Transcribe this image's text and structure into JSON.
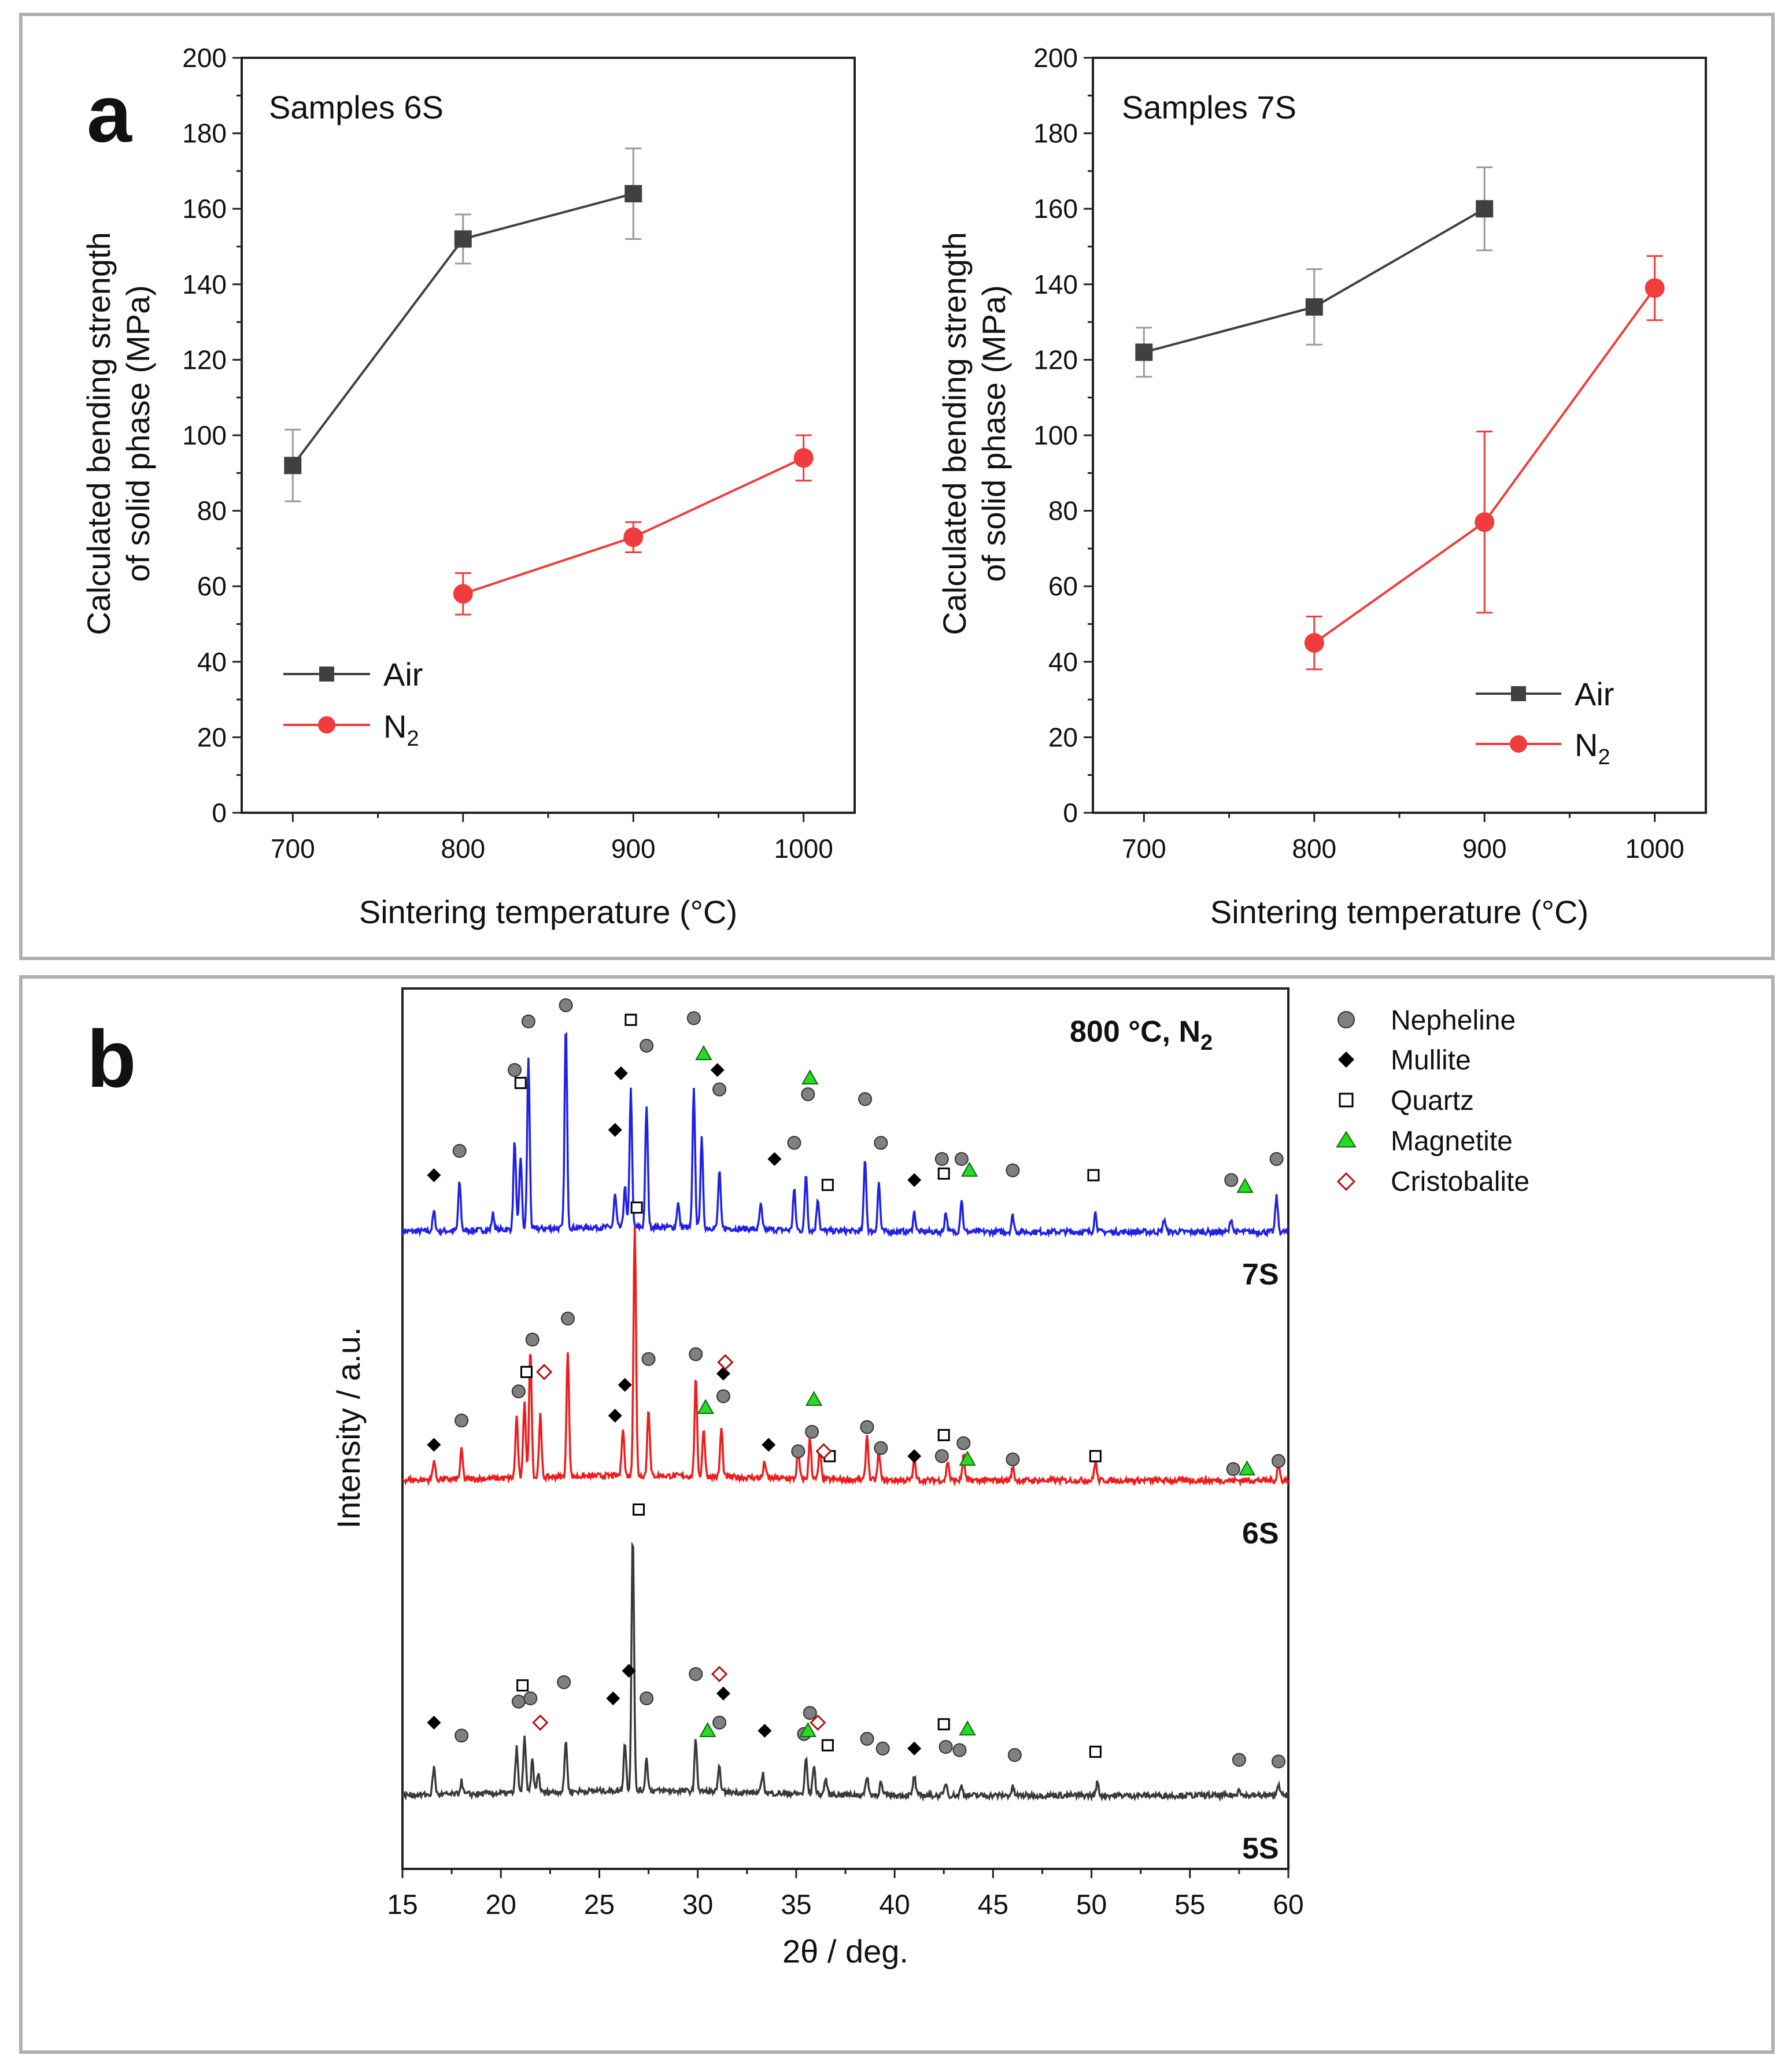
{
  "chart_data": [
    {
      "type": "line",
      "panel_label": "a",
      "title": "Samples 6S",
      "xlabel": "Sintering temperature (°C)",
      "ylabel": [
        "Calculated bending strength",
        "of solid phase (MPa)"
      ],
      "xlim": [
        670,
        1030
      ],
      "ylim": [
        0,
        200
      ],
      "xticks": [
        700,
        800,
        900,
        1000
      ],
      "yticks": [
        0,
        20,
        40,
        60,
        80,
        100,
        120,
        140,
        160,
        180,
        200
      ],
      "legend_position": "bottom-left",
      "series": [
        {
          "name": "Air",
          "color": "#404040",
          "marker": "square",
          "x": [
            700,
            800,
            900
          ],
          "y": [
            92,
            152,
            164
          ],
          "err": [
            9.5,
            6.5,
            12
          ]
        },
        {
          "name": "N",
          "sub": "2",
          "color": "#f03c3c",
          "marker": "circle",
          "x": [
            800,
            900,
            1000
          ],
          "y": [
            58,
            73,
            94
          ],
          "err": [
            5.5,
            4,
            6
          ]
        }
      ]
    },
    {
      "type": "line",
      "title": "Samples 7S",
      "xlabel": "Sintering temperature (°C)",
      "ylabel": [
        "Calculated bending strength",
        "of solid phase (MPa)"
      ],
      "xlim": [
        670,
        1030
      ],
      "ylim": [
        0,
        200
      ],
      "xticks": [
        700,
        800,
        900,
        1000
      ],
      "yticks": [
        0,
        20,
        40,
        60,
        80,
        100,
        120,
        140,
        160,
        180,
        200
      ],
      "legend_position": "bottom-right",
      "series": [
        {
          "name": "Air",
          "color": "#404040",
          "marker": "square",
          "x": [
            700,
            800,
            900,
            1000
          ],
          "y": [
            122,
            134,
            160,
            null
          ],
          "err": [
            6.5,
            10,
            11,
            0
          ]
        },
        {
          "name": "N",
          "sub": "2",
          "color": "#f03c3c",
          "marker": "circle",
          "x": [
            800,
            900,
            1000
          ],
          "y": [
            45,
            77,
            139
          ],
          "err": [
            7,
            24,
            8.5
          ]
        }
      ]
    },
    {
      "type": "line",
      "panel_label": "b",
      "title": "800 °C, N",
      "title_sub": "2",
      "xlabel": "2θ / deg.",
      "ylabel": "Intensity / a.u.",
      "xlim": [
        15,
        60
      ],
      "xticks": [
        15,
        20,
        25,
        30,
        35,
        40,
        45,
        50,
        55,
        60
      ],
      "traces": [
        {
          "name": "7S",
          "color": "#2020e8",
          "offset": 2.0,
          "baseline": 0.05,
          "peaks": [
            [
              16.6,
              0.12
            ],
            [
              17.9,
              0.3
            ],
            [
              19.6,
              0.1
            ],
            [
              20.7,
              0.55
            ],
            [
              21.0,
              0.45
            ],
            [
              21.4,
              1.05
            ],
            [
              23.3,
              1.25
            ],
            [
              25.8,
              0.2
            ],
            [
              26.3,
              0.25
            ],
            [
              26.6,
              0.85
            ],
            [
              27.4,
              0.75
            ],
            [
              29.0,
              0.15
            ],
            [
              29.8,
              0.85
            ],
            [
              30.2,
              0.55
            ],
            [
              31.1,
              0.35
            ],
            [
              33.2,
              0.15
            ],
            [
              34.9,
              0.25
            ],
            [
              35.5,
              0.35
            ],
            [
              36.1,
              0.2
            ],
            [
              38.5,
              0.45
            ],
            [
              39.2,
              0.3
            ],
            [
              41.0,
              0.12
            ],
            [
              42.6,
              0.12
            ],
            [
              43.4,
              0.2
            ],
            [
              46.0,
              0.1
            ],
            [
              50.2,
              0.12
            ],
            [
              53.7,
              0.08
            ],
            [
              57.1,
              0.08
            ],
            [
              59.4,
              0.22
            ]
          ]
        },
        {
          "name": "6S",
          "color": "#ee1c1c",
          "offset": 1.0,
          "baseline": 0.05,
          "peaks": [
            [
              16.6,
              0.12
            ],
            [
              18.0,
              0.18
            ],
            [
              20.8,
              0.38
            ],
            [
              21.2,
              0.48
            ],
            [
              21.5,
              0.8
            ],
            [
              22.0,
              0.38
            ],
            [
              23.4,
              0.78
            ],
            [
              26.2,
              0.3
            ],
            [
              26.8,
              1.55
            ],
            [
              27.5,
              0.42
            ],
            [
              29.9,
              0.6
            ],
            [
              30.3,
              0.3
            ],
            [
              31.2,
              0.3
            ],
            [
              33.4,
              0.1
            ],
            [
              35.1,
              0.18
            ],
            [
              35.7,
              0.25
            ],
            [
              36.2,
              0.18
            ],
            [
              38.6,
              0.28
            ],
            [
              39.2,
              0.18
            ],
            [
              41.0,
              0.12
            ],
            [
              42.7,
              0.12
            ],
            [
              43.5,
              0.15
            ],
            [
              46.0,
              0.08
            ],
            [
              50.2,
              0.12
            ],
            [
              59.5,
              0.1
            ]
          ]
        },
        {
          "name": "5S",
          "color": "#3a3a3a",
          "offset": 0.0,
          "baseline": 0.05,
          "peaks": [
            [
              16.6,
              0.17
            ],
            [
              18.0,
              0.08
            ],
            [
              20.8,
              0.28
            ],
            [
              21.2,
              0.35
            ],
            [
              21.6,
              0.2
            ],
            [
              21.9,
              0.12
            ],
            [
              23.3,
              0.32
            ],
            [
              26.3,
              0.3
            ],
            [
              26.7,
              1.6
            ],
            [
              27.4,
              0.2
            ],
            [
              29.9,
              0.32
            ],
            [
              31.1,
              0.15
            ],
            [
              33.3,
              0.12
            ],
            [
              35.5,
              0.22
            ],
            [
              35.9,
              0.18
            ],
            [
              36.5,
              0.1
            ],
            [
              38.6,
              0.12
            ],
            [
              39.3,
              0.08
            ],
            [
              41.0,
              0.12
            ],
            [
              42.6,
              0.08
            ],
            [
              43.4,
              0.06
            ],
            [
              46.0,
              0.05
            ],
            [
              50.3,
              0.08
            ],
            [
              57.5,
              0.05
            ],
            [
              59.5,
              0.08
            ]
          ]
        }
      ],
      "legend": [
        {
          "name": "Nepheline",
          "marker": "circle",
          "color": "#808080"
        },
        {
          "name": "Mullite",
          "marker": "diamond",
          "color": "#000000"
        },
        {
          "name": "Quartz",
          "marker": "open-square",
          "color": "#000000"
        },
        {
          "name": "Magnetite",
          "marker": "triangle",
          "color": "#22dd22"
        },
        {
          "name": "Cristobalite",
          "marker": "open-diamond",
          "color": "#b01010"
        }
      ],
      "phase_markers": {
        "7S": {
          "Nepheline": [
            [
              17.9,
              0.55
            ],
            [
              20.7,
              1.05
            ],
            [
              21.4,
              1.35
            ],
            [
              23.3,
              1.45
            ],
            [
              27.4,
              1.2
            ],
            [
              29.8,
              1.37
            ],
            [
              31.1,
              0.93
            ],
            [
              34.9,
              0.6
            ],
            [
              35.6,
              0.9
            ],
            [
              38.5,
              0.87
            ],
            [
              39.3,
              0.6
            ],
            [
              42.4,
              0.5
            ],
            [
              43.4,
              0.5
            ],
            [
              46.0,
              0.43
            ],
            [
              57.1,
              0.37
            ],
            [
              59.4,
              0.5
            ]
          ],
          "Mullite": [
            [
              16.6,
              0.4
            ],
            [
              25.8,
              0.68
            ],
            [
              26.1,
              1.03
            ],
            [
              31.0,
              1.05
            ],
            [
              33.9,
              0.5
            ],
            [
              41.0,
              0.37
            ]
          ],
          "Quartz": [
            [
              21.0,
              0.97
            ],
            [
              26.6,
              1.36
            ],
            [
              26.9,
              0.2
            ],
            [
              36.6,
              0.34
            ],
            [
              42.5,
              0.41
            ],
            [
              50.1,
              0.4
            ]
          ],
          "Magnetite": [
            [
              30.3,
              1.15
            ],
            [
              35.7,
              1.0
            ],
            [
              43.8,
              0.43
            ],
            [
              57.8,
              0.33
            ]
          ],
          "Cristobalite": []
        },
        "6S": {
          "Nepheline": [
            [
              18.0,
              0.42
            ],
            [
              20.9,
              0.6
            ],
            [
              21.6,
              0.92
            ],
            [
              23.4,
              1.05
            ],
            [
              27.5,
              0.8
            ],
            [
              29.9,
              0.83
            ],
            [
              31.3,
              0.57
            ],
            [
              35.8,
              0.35
            ],
            [
              35.1,
              0.23
            ],
            [
              38.6,
              0.38
            ],
            [
              39.3,
              0.25
            ],
            [
              42.4,
              0.2
            ],
            [
              43.5,
              0.28
            ],
            [
              46.0,
              0.18
            ],
            [
              57.2,
              0.12
            ],
            [
              59.5,
              0.17
            ]
          ],
          "Mullite": [
            [
              16.6,
              0.27
            ],
            [
              25.8,
              0.45
            ],
            [
              26.3,
              0.64
            ],
            [
              31.3,
              0.71
            ],
            [
              33.6,
              0.27
            ],
            [
              41.0,
              0.2
            ]
          ],
          "Quartz": [
            [
              21.3,
              0.72
            ],
            [
              27.0,
              -0.13
            ],
            [
              36.7,
              0.2
            ],
            [
              42.5,
              0.33
            ],
            [
              50.2,
              0.2
            ]
          ],
          "Magnetite": [
            [
              30.4,
              0.5
            ],
            [
              35.9,
              0.55
            ],
            [
              43.7,
              0.18
            ],
            [
              57.9,
              0.12
            ]
          ],
          "Cristobalite": [
            [
              22.2,
              0.72
            ],
            [
              31.4,
              0.78
            ],
            [
              36.4,
              0.23
            ]
          ]
        },
        "5S": {
          "Nepheline": [
            [
              18.0,
              0.42
            ],
            [
              20.9,
              0.63
            ],
            [
              21.5,
              0.65
            ],
            [
              23.2,
              0.75
            ],
            [
              27.4,
              0.65
            ],
            [
              29.9,
              0.8
            ],
            [
              31.1,
              0.5
            ],
            [
              35.4,
              0.43
            ],
            [
              35.7,
              0.56
            ],
            [
              38.6,
              0.4
            ],
            [
              39.4,
              0.34
            ],
            [
              42.6,
              0.35
            ],
            [
              43.3,
              0.33
            ],
            [
              46.1,
              0.3
            ],
            [
              57.5,
              0.27
            ],
            [
              59.5,
              0.26
            ]
          ],
          "Mullite": [
            [
              16.6,
              0.5
            ],
            [
              25.7,
              0.65
            ],
            [
              26.5,
              0.82
            ],
            [
              31.3,
              0.68
            ],
            [
              33.4,
              0.45
            ],
            [
              41.0,
              0.34
            ]
          ],
          "Quartz": [
            [
              21.1,
              0.73
            ],
            [
              36.6,
              0.36
            ],
            [
              42.5,
              0.49
            ],
            [
              50.2,
              0.32
            ]
          ],
          "Magnetite": [
            [
              30.5,
              0.45
            ],
            [
              35.6,
              0.45
            ],
            [
              43.7,
              0.46
            ]
          ],
          "Cristobalite": [
            [
              22.0,
              0.5
            ],
            [
              31.1,
              0.8
            ],
            [
              36.1,
              0.5
            ]
          ]
        }
      }
    }
  ]
}
